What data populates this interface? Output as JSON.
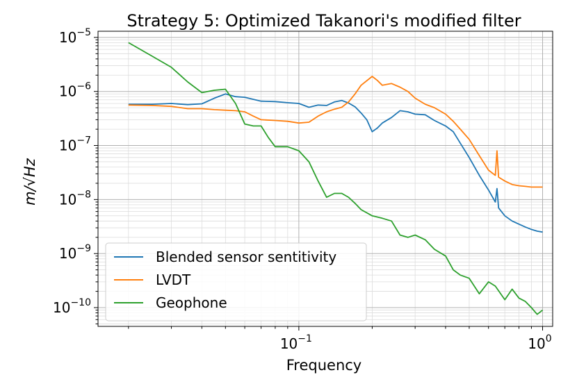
{
  "chart_data": {
    "type": "line",
    "title": "Strategy 5: Optimized Takanori's modified filter",
    "xlabel": "Frequency",
    "ylabel": "m/√Hz",
    "xscale": "log",
    "yscale": "log",
    "xlim": [
      0.015,
      1.1
    ],
    "ylim": [
      4.5e-11,
      1.3e-05
    ],
    "grid": true,
    "legend_position": "lower-left",
    "x_ticks": [
      {
        "value": 0.1,
        "base": "10",
        "exp": "−1"
      },
      {
        "value": 1,
        "base": "10",
        "exp": "0"
      }
    ],
    "y_ticks": [
      {
        "value": 1e-10,
        "base": "10",
        "exp": "−10"
      },
      {
        "value": 1e-09,
        "base": "10",
        "exp": "−9"
      },
      {
        "value": 1e-08,
        "base": "10",
        "exp": "−8"
      },
      {
        "value": 1e-07,
        "base": "10",
        "exp": "−7"
      },
      {
        "value": 1e-06,
        "base": "10",
        "exp": "−6"
      },
      {
        "value": 1e-05,
        "base": "10",
        "exp": "−5"
      }
    ],
    "series": [
      {
        "name": "Blended sensor sentitivity",
        "color": "#1f77b4",
        "points": [
          [
            0.02,
            5.8e-07
          ],
          [
            0.025,
            5.8e-07
          ],
          [
            0.03,
            6e-07
          ],
          [
            0.035,
            5.7e-07
          ],
          [
            0.04,
            5.9e-07
          ],
          [
            0.045,
            7.5e-07
          ],
          [
            0.05,
            9e-07
          ],
          [
            0.055,
            8e-07
          ],
          [
            0.06,
            7.8e-07
          ],
          [
            0.07,
            6.6e-07
          ],
          [
            0.08,
            6.5e-07
          ],
          [
            0.09,
            6.2e-07
          ],
          [
            0.1,
            6e-07
          ],
          [
            0.11,
            5.1e-07
          ],
          [
            0.12,
            5.6e-07
          ],
          [
            0.13,
            5.5e-07
          ],
          [
            0.14,
            6.4e-07
          ],
          [
            0.15,
            6.8e-07
          ],
          [
            0.16,
            6.1e-07
          ],
          [
            0.17,
            5.2e-07
          ],
          [
            0.18,
            4e-07
          ],
          [
            0.19,
            3e-07
          ],
          [
            0.2,
            1.8e-07
          ],
          [
            0.21,
            2.1e-07
          ],
          [
            0.22,
            2.6e-07
          ],
          [
            0.24,
            3.3e-07
          ],
          [
            0.26,
            4.4e-07
          ],
          [
            0.28,
            4.2e-07
          ],
          [
            0.3,
            3.8e-07
          ],
          [
            0.33,
            3.7e-07
          ],
          [
            0.36,
            2.9e-07
          ],
          [
            0.4,
            2.3e-07
          ],
          [
            0.43,
            1.8e-07
          ],
          [
            0.46,
            1.1e-07
          ],
          [
            0.5,
            6e-08
          ],
          [
            0.55,
            2.8e-08
          ],
          [
            0.6,
            1.5e-08
          ],
          [
            0.64,
            9e-09
          ],
          [
            0.65,
            1.6e-08
          ],
          [
            0.66,
            7e-09
          ],
          [
            0.7,
            5e-09
          ],
          [
            0.75,
            4e-09
          ],
          [
            0.8,
            3.5e-09
          ],
          [
            0.85,
            3.1e-09
          ],
          [
            0.9,
            2.8e-09
          ],
          [
            0.95,
            2.6e-09
          ],
          [
            1.0,
            2.5e-09
          ]
        ]
      },
      {
        "name": "LVDT",
        "color": "#ff7f0e",
        "points": [
          [
            0.02,
            5.6e-07
          ],
          [
            0.025,
            5.5e-07
          ],
          [
            0.03,
            5.3e-07
          ],
          [
            0.035,
            4.8e-07
          ],
          [
            0.04,
            4.8e-07
          ],
          [
            0.045,
            4.6e-07
          ],
          [
            0.05,
            4.5e-07
          ],
          [
            0.055,
            4.4e-07
          ],
          [
            0.06,
            4.2e-07
          ],
          [
            0.065,
            3.5e-07
          ],
          [
            0.07,
            3e-07
          ],
          [
            0.08,
            2.9e-07
          ],
          [
            0.09,
            2.8e-07
          ],
          [
            0.1,
            2.6e-07
          ],
          [
            0.11,
            2.7e-07
          ],
          [
            0.12,
            3.5e-07
          ],
          [
            0.13,
            4.2e-07
          ],
          [
            0.14,
            4.7e-07
          ],
          [
            0.15,
            5.1e-07
          ],
          [
            0.16,
            6.4e-07
          ],
          [
            0.17,
            9e-07
          ],
          [
            0.18,
            1.3e-06
          ],
          [
            0.2,
            1.9e-06
          ],
          [
            0.21,
            1.6e-06
          ],
          [
            0.22,
            1.3e-06
          ],
          [
            0.24,
            1.4e-06
          ],
          [
            0.26,
            1.2e-06
          ],
          [
            0.28,
            1e-06
          ],
          [
            0.3,
            7.5e-07
          ],
          [
            0.33,
            5.8e-07
          ],
          [
            0.36,
            5e-07
          ],
          [
            0.4,
            3.8e-07
          ],
          [
            0.43,
            2.8e-07
          ],
          [
            0.46,
            2e-07
          ],
          [
            0.5,
            1.3e-07
          ],
          [
            0.55,
            6.5e-08
          ],
          [
            0.6,
            3.5e-08
          ],
          [
            0.64,
            2.8e-08
          ],
          [
            0.65,
            8e-08
          ],
          [
            0.66,
            2.6e-08
          ],
          [
            0.7,
            2.2e-08
          ],
          [
            0.75,
            1.9e-08
          ],
          [
            0.8,
            1.8e-08
          ],
          [
            0.85,
            1.75e-08
          ],
          [
            0.9,
            1.7e-08
          ],
          [
            0.95,
            1.7e-08
          ],
          [
            1.0,
            1.7e-08
          ]
        ]
      },
      {
        "name": "Geophone",
        "color": "#2ca02c",
        "points": [
          [
            0.02,
            8e-06
          ],
          [
            0.025,
            4.5e-06
          ],
          [
            0.03,
            2.8e-06
          ],
          [
            0.035,
            1.5e-06
          ],
          [
            0.04,
            9.5e-07
          ],
          [
            0.045,
            1.05e-06
          ],
          [
            0.05,
            1.1e-06
          ],
          [
            0.055,
            6e-07
          ],
          [
            0.06,
            2.5e-07
          ],
          [
            0.065,
            2.3e-07
          ],
          [
            0.07,
            2.3e-07
          ],
          [
            0.075,
            1.4e-07
          ],
          [
            0.08,
            9.5e-08
          ],
          [
            0.09,
            9.5e-08
          ],
          [
            0.1,
            8e-08
          ],
          [
            0.11,
            5e-08
          ],
          [
            0.12,
            2.2e-08
          ],
          [
            0.13,
            1.1e-08
          ],
          [
            0.14,
            1.3e-08
          ],
          [
            0.15,
            1.3e-08
          ],
          [
            0.16,
            1.1e-08
          ],
          [
            0.17,
            8.5e-09
          ],
          [
            0.18,
            6.5e-09
          ],
          [
            0.2,
            5e-09
          ],
          [
            0.22,
            4.5e-09
          ],
          [
            0.24,
            4e-09
          ],
          [
            0.26,
            2.2e-09
          ],
          [
            0.28,
            2e-09
          ],
          [
            0.3,
            2.2e-09
          ],
          [
            0.33,
            1.8e-09
          ],
          [
            0.36,
            1.2e-09
          ],
          [
            0.4,
            9e-10
          ],
          [
            0.43,
            5e-10
          ],
          [
            0.46,
            4e-10
          ],
          [
            0.5,
            3.5e-10
          ],
          [
            0.55,
            1.8e-10
          ],
          [
            0.6,
            3e-10
          ],
          [
            0.64,
            2.5e-10
          ],
          [
            0.7,
            1.4e-10
          ],
          [
            0.75,
            2.2e-10
          ],
          [
            0.8,
            1.5e-10
          ],
          [
            0.85,
            1.3e-10
          ],
          [
            0.9,
            1e-10
          ],
          [
            0.95,
            7.5e-11
          ],
          [
            1.0,
            9e-11
          ]
        ]
      }
    ]
  }
}
